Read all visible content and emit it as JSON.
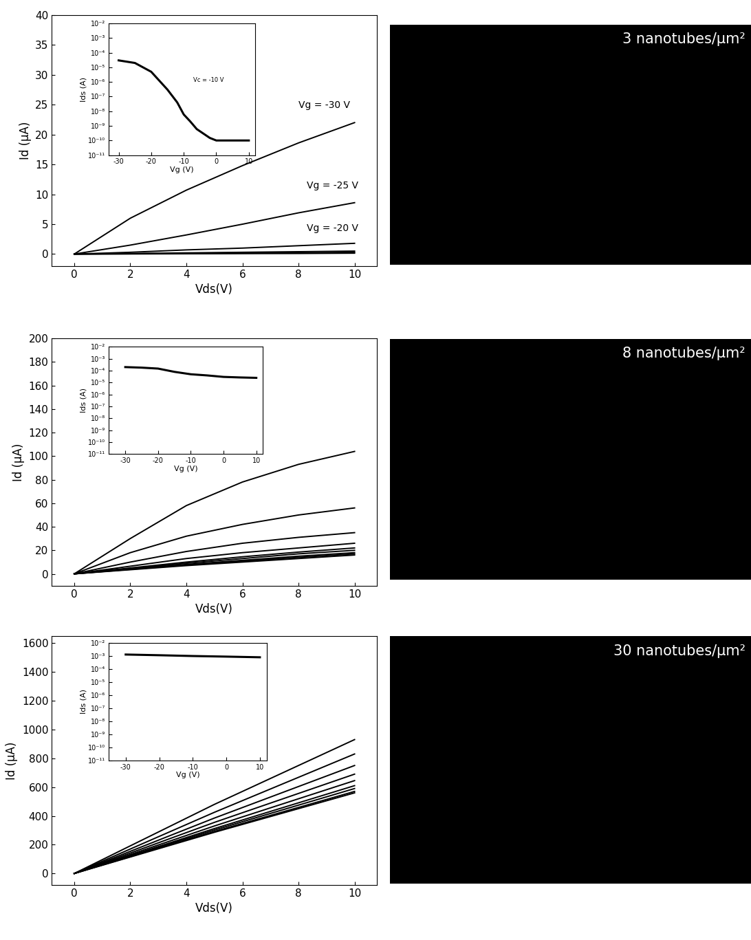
{
  "chart_data": [
    {
      "type": "line",
      "color": "#000000",
      "xlabel": "Vds(V)",
      "ylabel": "Id (μA)",
      "x": [
        0,
        2,
        4,
        6,
        8,
        10
      ],
      "series": [
        {
          "values": [
            0,
            6.0,
            10.7,
            14.8,
            18.6,
            22.0
          ]
        },
        {
          "values": [
            0,
            1.5,
            3.2,
            5.0,
            6.9,
            8.6
          ]
        },
        {
          "values": [
            0,
            0.3,
            0.7,
            1.0,
            1.4,
            1.8
          ]
        },
        {
          "values": [
            0,
            0.1,
            0.2,
            0.3,
            0.4,
            0.5
          ]
        },
        {
          "values": [
            0,
            0.05,
            0.1,
            0.15,
            0.2,
            0.3
          ]
        },
        {
          "values": [
            0,
            0.02,
            0.05,
            0.08,
            0.1,
            0.15
          ]
        }
      ],
      "xlim": [
        -0.8,
        10.8
      ],
      "ylim": [
        -2,
        40
      ],
      "xticks": [
        0,
        2,
        4,
        6,
        8,
        10
      ],
      "yticks": [
        0,
        5,
        10,
        15,
        20,
        25,
        30,
        35,
        40
      ],
      "annotations": [
        {
          "text": "Vg = -30 V",
          "x": 8.0,
          "y": 24.5
        },
        {
          "text": "Vg = -25 V",
          "x": 8.3,
          "y": 11.0
        },
        {
          "text": "Vg = -20 V",
          "x": 8.3,
          "y": 3.8
        }
      ],
      "inset": {
        "type": "line",
        "log": "y",
        "color": "#000000",
        "xlabel": "Vg (V)",
        "ylabel": "Ids (A)",
        "x": [
          -30,
          -25,
          -20,
          -15,
          -12,
          -10,
          -8,
          -6,
          -4,
          -2,
          0,
          5,
          10
        ],
        "series": [
          {
            "values": [
              3e-05,
              2e-05,
              5e-06,
              3e-07,
              4e-08,
              6e-09,
              2e-09,
              6e-10,
              3e-10,
              1.5e-10,
              1e-10,
              1e-10,
              1e-10
            ]
          }
        ],
        "xlim": [
          -33,
          12
        ],
        "ylim": [
          1e-11,
          0.01
        ],
        "xticks": [
          -30,
          -20,
          -10,
          0,
          10
        ],
        "yticks": [
          {
            "value": 1e-11,
            "label": "10⁻¹¹"
          },
          {
            "value": 1e-10,
            "label": "10⁻¹⁰"
          },
          {
            "value": 1e-09,
            "label": "10⁻⁹"
          },
          {
            "value": 1e-08,
            "label": "10⁻⁸"
          },
          {
            "value": 1e-07,
            "label": "10⁻⁷"
          },
          {
            "value": 1e-06,
            "label": "10⁻⁶"
          },
          {
            "value": 1e-05,
            "label": "10⁻⁵"
          },
          {
            "value": 0.0001,
            "label": "10⁻⁴"
          },
          {
            "value": 0.001,
            "label": "10⁻³"
          },
          {
            "value": 0.01,
            "label": "10⁻²"
          }
        ],
        "annotations": [
          {
            "text": "Vc = -10 V",
            "x": -7,
            "y": 1e-06
          }
        ]
      }
    },
    {
      "type": "line",
      "color": "#000000",
      "xlabel": "Vds(V)",
      "ylabel": "Id (μA)",
      "x": [
        0,
        2,
        4,
        6,
        8,
        10
      ],
      "series": [
        {
          "values": [
            0,
            30,
            58,
            78,
            93,
            104
          ]
        },
        {
          "values": [
            0,
            18,
            32,
            42,
            50,
            56
          ]
        },
        {
          "values": [
            0,
            10,
            19,
            26,
            31,
            35
          ]
        },
        {
          "values": [
            0,
            6.5,
            13,
            18,
            22,
            26
          ]
        },
        {
          "values": [
            0,
            5,
            10,
            14.5,
            18.5,
            22
          ]
        },
        {
          "values": [
            0,
            4.5,
            9,
            13,
            17,
            20
          ]
        },
        {
          "values": [
            0,
            4,
            8,
            11.5,
            15,
            18
          ]
        },
        {
          "values": [
            0,
            3.8,
            7.5,
            10.8,
            14,
            17
          ]
        },
        {
          "values": [
            0,
            3.5,
            7,
            10,
            13,
            16
          ]
        }
      ],
      "xlim": [
        -0.8,
        10.8
      ],
      "ylim": [
        -10,
        200
      ],
      "xticks": [
        0,
        2,
        4,
        6,
        8,
        10
      ],
      "yticks": [
        0,
        20,
        40,
        60,
        80,
        100,
        120,
        140,
        160,
        180,
        200
      ],
      "inset": {
        "type": "line",
        "log": "y",
        "color": "#000000",
        "xlabel": "Vg (V)",
        "ylabel": "Ids (A)",
        "x": [
          -30,
          -25,
          -20,
          -15,
          -10,
          -5,
          0,
          5,
          10
        ],
        "series": [
          {
            "values": [
              0.0002,
              0.00018,
              0.00015,
              8e-05,
              5e-05,
              4e-05,
              3e-05,
              2.7e-05,
              2.5e-05
            ]
          }
        ],
        "xlim": [
          -35,
          12
        ],
        "ylim": [
          1e-11,
          0.01
        ],
        "xticks": [
          -30,
          -20,
          -10,
          0,
          10
        ],
        "yticks": [
          {
            "value": 1e-11,
            "label": "10⁻¹¹"
          },
          {
            "value": 1e-10,
            "label": "10⁻¹⁰"
          },
          {
            "value": 1e-09,
            "label": "10⁻⁹"
          },
          {
            "value": 1e-08,
            "label": "10⁻⁸"
          },
          {
            "value": 1e-07,
            "label": "10⁻⁷"
          },
          {
            "value": 1e-06,
            "label": "10⁻⁶"
          },
          {
            "value": 1e-05,
            "label": "10⁻⁵"
          },
          {
            "value": 0.0001,
            "label": "10⁻⁴"
          },
          {
            "value": 0.001,
            "label": "10⁻³"
          },
          {
            "value": 0.01,
            "label": "10⁻²"
          }
        ]
      }
    },
    {
      "type": "line",
      "color": "#000000",
      "xlabel": "Vds(V)",
      "ylabel": "Id (μA)",
      "x": [
        0,
        5,
        10
      ],
      "series": [
        {
          "values": [
            0,
            480,
            930
          ]
        },
        {
          "values": [
            0,
            425,
            830
          ]
        },
        {
          "values": [
            0,
            385,
            750
          ]
        },
        {
          "values": [
            0,
            355,
            690
          ]
        },
        {
          "values": [
            0,
            330,
            645
          ]
        },
        {
          "values": [
            0,
            312,
            610
          ]
        },
        {
          "values": [
            0,
            302,
            590
          ]
        },
        {
          "values": [
            0,
            292,
            570
          ]
        },
        {
          "values": [
            0,
            286,
            560
          ]
        }
      ],
      "xlim": [
        -0.8,
        10.8
      ],
      "ylim": [
        -80,
        1650
      ],
      "xticks": [
        0,
        2,
        4,
        6,
        8,
        10
      ],
      "yticks": [
        0,
        200,
        400,
        600,
        800,
        1000,
        1200,
        1400,
        1600
      ],
      "inset": {
        "type": "line",
        "log": "y",
        "color": "#000000",
        "xlabel": "Vg (V)",
        "ylabel": "Ids (A)",
        "x": [
          -30,
          -20,
          -10,
          0,
          10
        ],
        "series": [
          {
            "values": [
              0.0013,
              0.00115,
              0.001,
              0.0009,
              0.0008
            ]
          }
        ],
        "xlim": [
          -35,
          12
        ],
        "ylim": [
          1e-11,
          0.01
        ],
        "xticks": [
          -30,
          -20,
          -10,
          0,
          10
        ],
        "yticks": [
          {
            "value": 1e-11,
            "label": "10⁻¹¹"
          },
          {
            "value": 1e-10,
            "label": "10⁻¹⁰"
          },
          {
            "value": 1e-09,
            "label": "10⁻⁹"
          },
          {
            "value": 1e-08,
            "label": "10⁻⁸"
          },
          {
            "value": 1e-07,
            "label": "10⁻⁷"
          },
          {
            "value": 1e-06,
            "label": "10⁻⁶"
          },
          {
            "value": 1e-05,
            "label": "10⁻⁵"
          },
          {
            "value": 0.0001,
            "label": "10⁻⁴"
          },
          {
            "value": 0.001,
            "label": "10⁻³"
          },
          {
            "value": 0.01,
            "label": "10⁻²"
          }
        ]
      }
    },
    {
      "type": "image",
      "title": "3 nanotubes/μm²",
      "color": "#000000"
    },
    {
      "type": "image",
      "title": "8 nanotubes/μm²",
      "color": "#000000"
    },
    {
      "type": "image",
      "title": "30 nanotubes/μm²",
      "color": "#000000"
    }
  ]
}
